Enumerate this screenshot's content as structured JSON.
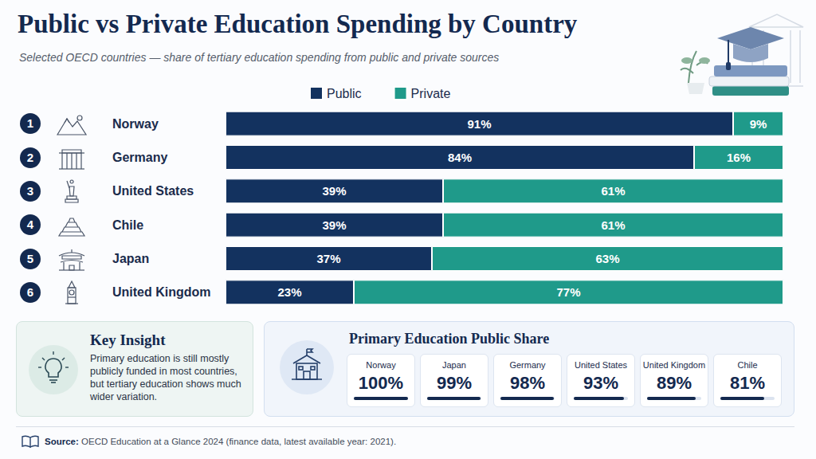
{
  "chart_data": {
    "type": "bar",
    "title": "Public vs Private Education Spending by Country",
    "subtitle": "Selected OECD countries — share of tertiary education spending from public and private sources",
    "orientation": "horizontal",
    "stacked": true,
    "data_labels": true,
    "tick_labels": false,
    "grid": false,
    "legend": "top",
    "categories": [
      "Norway",
      "Germany",
      "United States",
      "Chile",
      "Japan",
      "United Kingdom"
    ],
    "xlim": [
      0,
      100
    ],
    "series": [
      {
        "name": "Public",
        "color": "#13325f",
        "values": [
          91,
          84,
          39,
          39,
          37,
          23
        ],
        "value_labels": [
          "91%",
          "84%",
          "39%",
          "39%",
          "37%",
          "23%"
        ]
      },
      {
        "name": "Private",
        "color": "#1f9a8a",
        "values": [
          9,
          16,
          61,
          61,
          63,
          77
        ],
        "value_labels": [
          "9%",
          "16%",
          "61%",
          "61%",
          "63%",
          "77%"
        ]
      }
    ]
  },
  "ranks": [
    1,
    2,
    3,
    4,
    5,
    6
  ],
  "key_insight": {
    "title": "Key Insight",
    "text": "Primary education is still mostly publicly funded in most countries, but tertiary education shows much wider variation."
  },
  "primary_share": {
    "title": "Primary Education Public Share",
    "cards": [
      {
        "country": "Norway",
        "value": 100,
        "label": "100%"
      },
      {
        "country": "Japan",
        "value": 99,
        "label": "99%"
      },
      {
        "country": "Germany",
        "value": 98,
        "label": "98%"
      },
      {
        "country": "United States",
        "value": 93,
        "label": "93%"
      },
      {
        "country": "United Kingdom",
        "value": 89,
        "label": "89%"
      },
      {
        "country": "Chile",
        "value": 81,
        "label": "81%"
      }
    ]
  },
  "source": {
    "label": "Source:",
    "text": "OECD Education at a Glance 2024 (finance data, latest available year: 2021)."
  }
}
